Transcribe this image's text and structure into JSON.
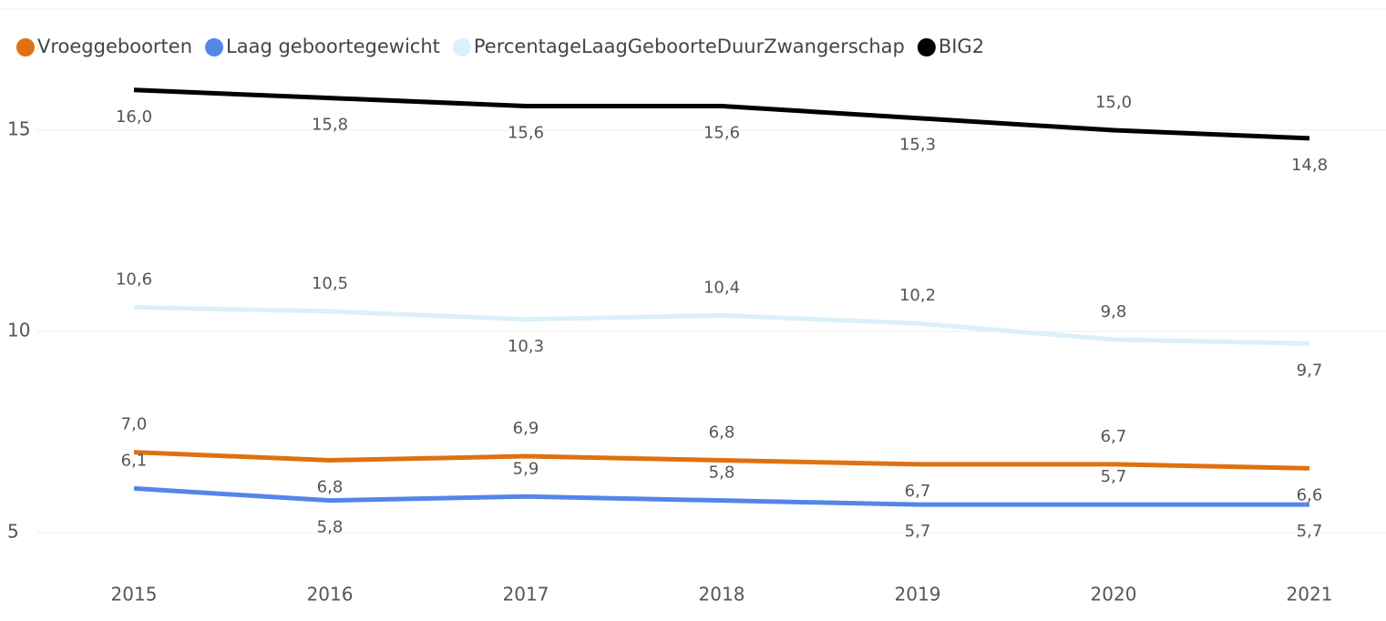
{
  "chart_data": {
    "type": "line",
    "categories": [
      "2015",
      "2016",
      "2017",
      "2018",
      "2019",
      "2020",
      "2021"
    ],
    "series": [
      {
        "name": "Vroeggeboorten",
        "color": "#e07010",
        "values": [
          7.0,
          6.8,
          6.9,
          6.8,
          6.7,
          6.7,
          6.6
        ],
        "value_labels": [
          "7,0",
          "6,8",
          "6,9",
          "6,8",
          "6,7",
          "6,7",
          "6,6"
        ]
      },
      {
        "name": "Laag geboortegewicht",
        "color": "#5585e8",
        "values": [
          6.1,
          5.8,
          5.9,
          5.8,
          5.7,
          5.7,
          5.7
        ],
        "value_labels": [
          "6,1",
          "5,8",
          "5,9",
          "5,8",
          "5,7",
          "5,7",
          "5,7"
        ]
      },
      {
        "name": "PercentageLaagGeboorteDuurZwangerschap",
        "color": "#dcf0fa",
        "values": [
          10.6,
          10.5,
          10.3,
          10.4,
          10.2,
          9.8,
          9.7
        ],
        "value_labels": [
          "10,6",
          "10,5",
          "10,3",
          "10,4",
          "10,2",
          "9,8",
          "9,7"
        ]
      },
      {
        "name": "BIG2",
        "color": "#000000",
        "values": [
          16.0,
          15.8,
          15.6,
          15.6,
          15.3,
          15.0,
          14.8
        ],
        "value_labels": [
          "16,0",
          "15,8",
          "15,6",
          "15,6",
          "15,3",
          "15,0",
          "14,8"
        ]
      }
    ],
    "ylim": [
      4.2,
      16.5
    ],
    "yticks": [
      5,
      10,
      15
    ],
    "grid": true,
    "legend": "top-left"
  }
}
